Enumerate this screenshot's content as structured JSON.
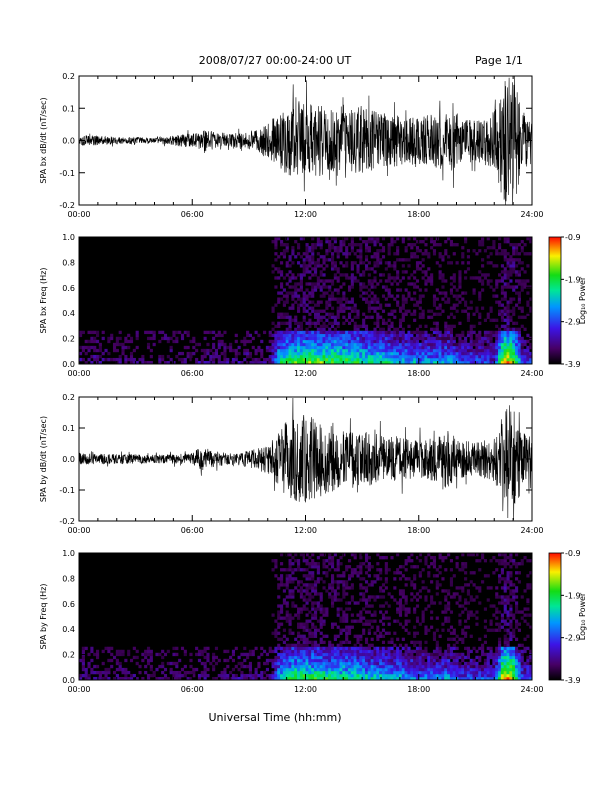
{
  "header": {
    "title": "2008/07/27  00:00-24:00 UT",
    "page": "Page 1/1"
  },
  "chart_data": [
    {
      "type": "line",
      "ylabel": "SPA bx dB/dt (nT/sec)",
      "xlim": [
        0,
        24
      ],
      "ylim": [
        -0.2,
        0.2
      ],
      "x_ticks": [
        "00:00",
        "06:00",
        "12:00",
        "18:00",
        "24:00"
      ],
      "y_ticks": [
        "-0.2",
        "-0.1",
        "0.0",
        "0.1",
        "0.2"
      ],
      "amplitude_profile": {
        "hours": [
          0,
          2,
          4,
          6,
          6.8,
          7.5,
          9,
          10,
          10.5,
          11,
          12,
          13,
          14,
          15,
          16,
          17,
          18,
          19,
          19.6,
          20,
          21,
          22,
          22.5,
          23,
          23.5,
          24
        ],
        "envelope": [
          0.02,
          0.013,
          0.01,
          0.025,
          0.04,
          0.02,
          0.03,
          0.06,
          0.09,
          0.13,
          0.14,
          0.12,
          0.1,
          0.12,
          0.1,
          0.09,
          0.08,
          0.1,
          0.12,
          0.09,
          0.07,
          0.1,
          0.22,
          0.22,
          0.1,
          0.08
        ]
      }
    },
    {
      "type": "heatmap",
      "ylabel": "SPA bx Freq (Hz)",
      "xlim": [
        0,
        24
      ],
      "ylim": [
        0,
        1.0
      ],
      "x_ticks": [
        "00:00",
        "06:00",
        "12:00",
        "18:00",
        "24:00"
      ],
      "y_ticks": [
        "0.0",
        "0.2",
        "0.4",
        "0.6",
        "0.8",
        "1.0"
      ],
      "colorbar": {
        "label": "Log₁₀ Power",
        "range": [
          -3.9,
          -0.9
        ],
        "ticks": [
          "-0.9",
          "-1.9",
          "-2.9",
          "-3.9"
        ]
      },
      "activity_profile": {
        "hours": [
          0,
          2,
          4,
          6,
          7,
          9,
          10.2,
          10.5,
          11,
          12,
          14,
          16,
          18,
          19.5,
          20,
          21,
          22,
          22.5,
          23,
          23.5,
          24
        ],
        "strength": [
          0.12,
          0.08,
          0.06,
          0.1,
          0.12,
          0.12,
          0.15,
          0.55,
          0.7,
          0.75,
          0.7,
          0.6,
          0.45,
          0.5,
          0.4,
          0.35,
          0.3,
          0.95,
          0.9,
          0.35,
          0.3
        ]
      }
    },
    {
      "type": "line",
      "ylabel": "SPA by dB/dt (nT/sec)",
      "xlim": [
        0,
        24
      ],
      "ylim": [
        -0.2,
        0.2
      ],
      "x_ticks": [
        "00:00",
        "06:00",
        "12:00",
        "18:00",
        "24:00"
      ],
      "y_ticks": [
        "-0.2",
        "-0.1",
        "0.0",
        "0.1",
        "0.2"
      ],
      "amplitude_profile": {
        "hours": [
          0,
          2,
          4,
          6,
          6.5,
          7,
          8,
          9,
          10,
          10.5,
          11,
          12,
          13,
          14,
          15,
          16,
          17,
          18,
          19,
          19.6,
          20,
          21,
          22,
          22.5,
          23,
          23.5,
          24
        ],
        "envelope": [
          0.02,
          0.018,
          0.015,
          0.02,
          0.05,
          0.03,
          0.02,
          0.03,
          0.05,
          0.09,
          0.14,
          0.16,
          0.13,
          0.1,
          0.1,
          0.09,
          0.08,
          0.07,
          0.08,
          0.11,
          0.07,
          0.06,
          0.08,
          0.2,
          0.22,
          0.1,
          0.08
        ]
      }
    },
    {
      "type": "heatmap",
      "ylabel": "SPA by Freq (Hz)",
      "xlim": [
        0,
        24
      ],
      "ylim": [
        0,
        1.0
      ],
      "x_ticks": [
        "00:00",
        "06:00",
        "12:00",
        "18:00",
        "24:00"
      ],
      "y_ticks": [
        "0.0",
        "0.2",
        "0.4",
        "0.6",
        "0.8",
        "1.0"
      ],
      "xlabel": "Universal Time (hh:mm)",
      "colorbar": {
        "label": "Log₁₀ Power",
        "range": [
          -3.9,
          -0.9
        ],
        "ticks": [
          "-0.9",
          "-1.9",
          "-2.9",
          "-3.9"
        ]
      },
      "activity_profile": {
        "hours": [
          0,
          2,
          4,
          6,
          7,
          9,
          10.2,
          10.5,
          11,
          12,
          14,
          16,
          18,
          19.5,
          20,
          21,
          22,
          22.5,
          23,
          23.5,
          24
        ],
        "strength": [
          0.12,
          0.08,
          0.06,
          0.1,
          0.12,
          0.12,
          0.15,
          0.5,
          0.65,
          0.7,
          0.62,
          0.55,
          0.42,
          0.45,
          0.38,
          0.32,
          0.3,
          0.95,
          0.88,
          0.35,
          0.3
        ]
      }
    }
  ]
}
